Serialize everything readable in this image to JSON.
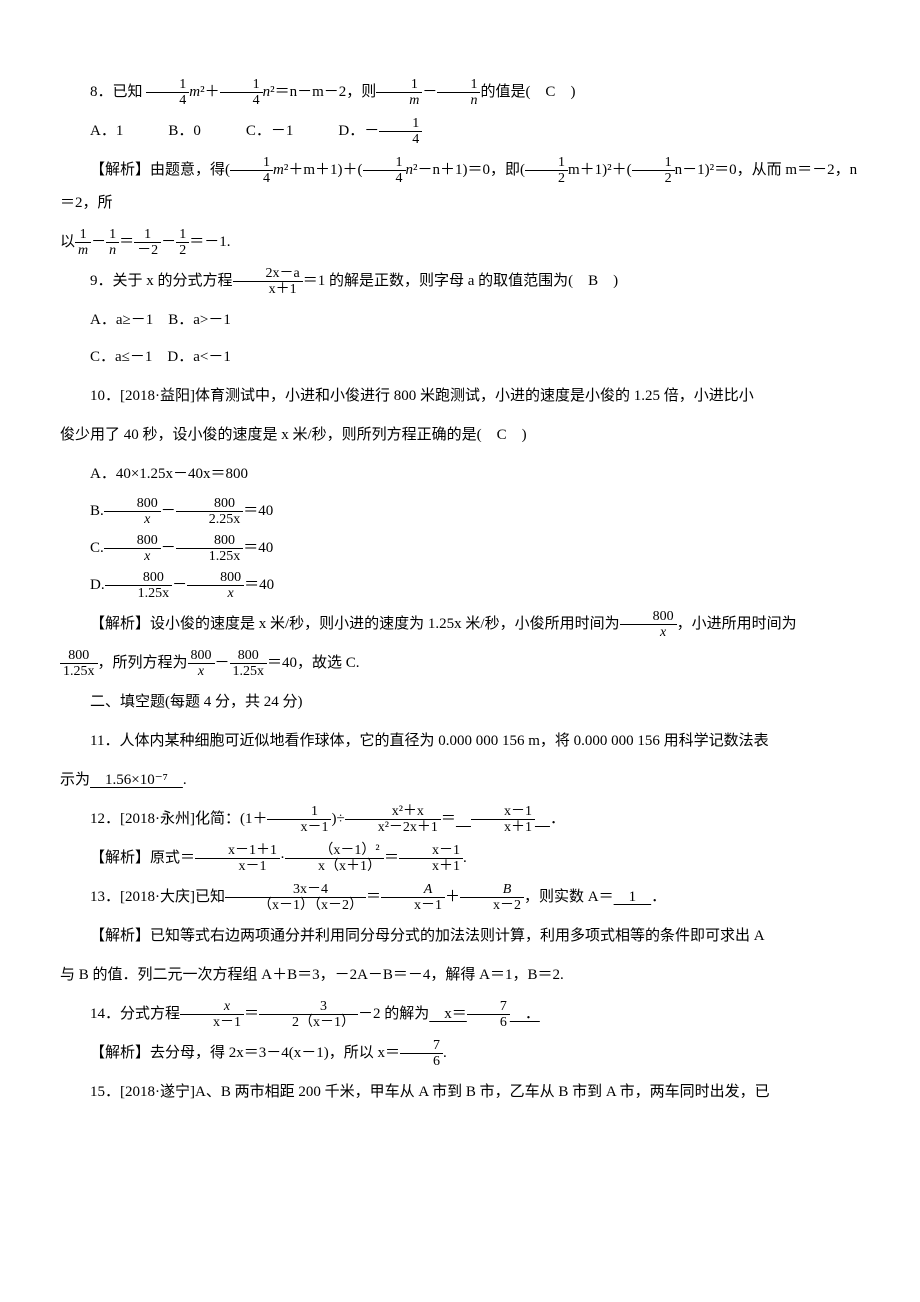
{
  "q8": {
    "stem_a": "8．已知",
    "stem_b": "，则",
    "stem_c": "的值是(　C　)",
    "lhs1_num": "1",
    "lhs1_den": "4",
    "lhs1_var": "m",
    "lhs2_num": "1",
    "lhs2_den": "4",
    "lhs2_var": "n",
    "rhs": "＝n－m－2",
    "ask1_num": "1",
    "ask1_den": "m",
    "ask2_num": "1",
    "ask2_den": "n",
    "choices_a": "A．1",
    "choices_b": "B．0",
    "choices_c": "C．－1",
    "choices_d_pre": "D．－",
    "choices_d_num": "1",
    "choices_d_den": "4",
    "expl_pre": "【解析】由题意，得(",
    "e1_num": "1",
    "e1_den": "4",
    "e1_var": "m",
    "e1_rest": "＋m＋1)＋(",
    "e2_num": "1",
    "e2_den": "4",
    "e2_var": "n",
    "e2_rest": "－n＋1)＝0，即(",
    "e3_num": "1",
    "e3_den": "2",
    "e3_rest": "m＋1)²＋(",
    "e4_num": "1",
    "e4_den": "2",
    "e4_rest": "n－1)²＝0，从而 m＝－2，n＝2，所",
    "expl2_a": "以",
    "expl2_t1_num": "1",
    "expl2_t1_den": "m",
    "expl2_t2_num": "1",
    "expl2_t2_den": "n",
    "expl2_eq": "＝",
    "expl2_t3_num": "1",
    "expl2_t3_den": "－2",
    "expl2_t4_num": "1",
    "expl2_t4_den": "2",
    "expl2_end": "＝－1."
  },
  "q9": {
    "stem_a": "9．关于 x 的分式方程",
    "frac_num": "2x－a",
    "frac_den": "x＋1",
    "stem_b": "＝1 的解是正数，则字母 a 的取值范围为(　B　)",
    "row1": "A．a≥－1　B．a>－1",
    "row2": "C．a≤－1　D．a<－1"
  },
  "q10": {
    "stem": "10．[2018·益阳]体育测试中，小进和小俊进行 800 米跑测试，小进的速度是小俊的 1.25 倍，小进比小",
    "stem2": "俊少用了 40 秒，设小俊的速度是 x 米/秒，则所列方程正确的是(　C　)",
    "a": "A．40×1.25x－40x＝800",
    "b_pre": "B.",
    "b1_num": "800",
    "b1_den": "x",
    "b2_num": "800",
    "b2_den": "2.25x",
    "b_end": "＝40",
    "c_pre": "C.",
    "c1_num": "800",
    "c1_den": "x",
    "c2_num": "800",
    "c2_den": "1.25x",
    "c_end": "＝40",
    "d_pre": "D.",
    "d1_num": "800",
    "d1_den": "1.25x",
    "d2_num": "800",
    "d2_den": "x",
    "d_end": "＝40",
    "expl_a": "【解析】设小俊的速度是 x 米/秒，则小进的速度为 1.25x 米/秒，小俊所用时间为",
    "expl_f1_num": "800",
    "expl_f1_den": "x",
    "expl_a2": "，小进所用时间为",
    "expl_b_num": "800",
    "expl_b_den": "1.25x",
    "expl_b2": "，所列方程为",
    "expl_c1_num": "800",
    "expl_c1_den": "x",
    "expl_c2_num": "800",
    "expl_c2_den": "1.25x",
    "expl_end": "＝40，故选 C."
  },
  "sec2": "二、填空题(每题 4 分，共 24 分)",
  "q11": {
    "stem": "11．人体内某种细胞可近似地看作球体，它的直径为 0.000 000 156 m，将 0.000 000 156 用科学记数法表",
    "stem2_a": "示为",
    "ans": "　1.56×10⁻⁷　",
    "stem2_b": "."
  },
  "q12": {
    "stem_a": "12．[2018·永州]化简：(1＋",
    "f1_num": "1",
    "f1_den": "x－1",
    "stem_b": ")÷",
    "f2_num": "x²＋x",
    "f2_den": "x²－2x＋1",
    "stem_c": "＝",
    "ans_num": "x－1",
    "ans_den": "x＋1",
    "stem_d": "．",
    "expl_a": "【解析】原式＝",
    "e1_num": "x－1＋1",
    "e1_den": "x－1",
    "expl_b": "·",
    "e2_num": "（x－1）²",
    "e2_den": "x（x＋1）",
    "expl_c": "＝",
    "e3_num": "x－1",
    "e3_den": "x＋1",
    "expl_d": "."
  },
  "q13": {
    "stem_a": "13．[2018·大庆]已知",
    "f1_num": "3x－4",
    "f1_den": "（x－1）（x－2）",
    "stem_b": "＝",
    "f2_num": "A",
    "f2_den": "x－1",
    "stem_c": "＋",
    "f3_num": "B",
    "f3_den": "x－2",
    "stem_d": "，则实数 A＝",
    "ans": "　1　",
    "stem_e": "．",
    "expl1": "【解析】已知等式右边两项通分并利用同分母分式的加法法则计算，利用多项式相等的条件即可求出 A",
    "expl2": "与 B 的值．列二元一次方程组 A＋B＝3，－2A－B＝－4，解得 A＝1，B＝2."
  },
  "q14": {
    "stem_a": "14．分式方程",
    "f1_num": "x",
    "f1_den": "x－1",
    "stem_b": "＝",
    "f2_num": "3",
    "f2_den": "2（x－1）",
    "stem_c": "－2 的解为",
    "ans_pre": "　x＝",
    "ans_num": "7",
    "ans_den": "6",
    "stem_d": "　．",
    "expl_a": "【解析】去分母，得 2x＝3－4(x－1)，所以 x＝",
    "e1_num": "7",
    "e1_den": "6",
    "expl_b": "."
  },
  "q15": {
    "stem": "15．[2018·遂宁]A、B 两市相距 200 千米，甲车从 A 市到 B 市，乙车从 B 市到 A 市，两车同时出发，已"
  }
}
